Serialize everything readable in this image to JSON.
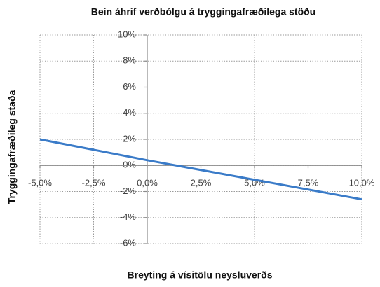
{
  "chart_data": {
    "type": "line",
    "title": "Bein áhrif verðbólgu á tryggingafræðilega stöðu",
    "x_label": "Breyting á vísitölu neysluverðs",
    "y_label": "Tryggingafræðileg staða",
    "x": [
      -5,
      0,
      5,
      10
    ],
    "series": [
      {
        "name": "Tryggingafræðileg staða",
        "color": "#3a7bc8",
        "values": [
          2.0,
          0.4,
          -1.1,
          -2.6
        ]
      }
    ],
    "xlim": [
      -5,
      10
    ],
    "xticks": [
      {
        "value": -5,
        "label": "-5,0%"
      },
      {
        "value": -2.5,
        "label": "-2,5%"
      },
      {
        "value": 0,
        "label": "0,0%"
      },
      {
        "value": 2.5,
        "label": "2,5%"
      },
      {
        "value": 5,
        "label": "5,0%"
      },
      {
        "value": 7.5,
        "label": "7,5%"
      },
      {
        "value": 10,
        "label": "10,0%"
      }
    ],
    "ylim": [
      -6,
      10
    ],
    "yticks": [
      {
        "value": -6,
        "label": "-6%"
      },
      {
        "value": -4,
        "label": "-4%"
      },
      {
        "value": -2,
        "label": "-2%"
      },
      {
        "value": 0,
        "label": "0%"
      },
      {
        "value": 2,
        "label": "2%"
      },
      {
        "value": 4,
        "label": "4%"
      },
      {
        "value": 6,
        "label": "6%"
      },
      {
        "value": 8,
        "label": "8%"
      },
      {
        "value": 10,
        "label": "10%"
      }
    ],
    "grid": true
  }
}
